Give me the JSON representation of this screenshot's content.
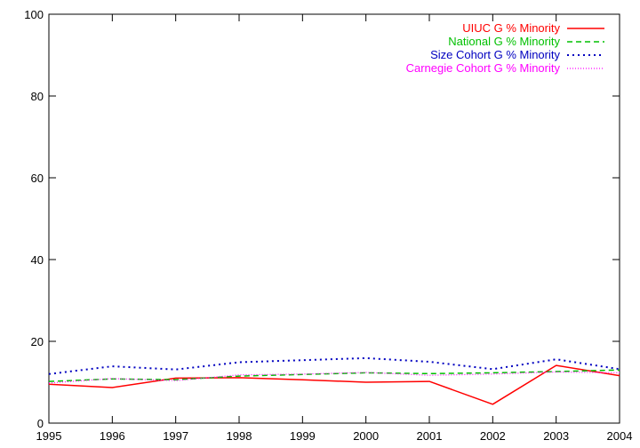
{
  "chart_data": {
    "type": "line",
    "title": "",
    "xlabel": "",
    "ylabel": "",
    "x": [
      1995,
      1996,
      1997,
      1998,
      1999,
      2000,
      2001,
      2002,
      2003,
      2004
    ],
    "xlim": [
      1995,
      2004
    ],
    "ylim": [
      0,
      100
    ],
    "xticks": [
      "1995",
      "1996",
      "1997",
      "1998",
      "1999",
      "2000",
      "2001",
      "2002",
      "2003",
      "2004"
    ],
    "yticks": [
      "0",
      "20",
      "40",
      "60",
      "80",
      "100"
    ],
    "grid": false,
    "legend_position": "top-right",
    "series": [
      {
        "name": "UIUC G % Minority",
        "color": "#ff0000",
        "dash": "solid",
        "values": [
          9.5,
          8.7,
          11.0,
          11.1,
          10.6,
          10.0,
          10.2,
          4.6,
          14.1,
          11.6
        ]
      },
      {
        "name": "National G % Minority",
        "color": "#00c000",
        "dash": "dashed",
        "values": [
          10.2,
          10.8,
          10.6,
          11.5,
          11.9,
          12.3,
          12.1,
          12.3,
          12.6,
          13.0
        ]
      },
      {
        "name": "Size Cohort G % Minority",
        "color": "#0000c0",
        "dash": "dotted",
        "values": [
          12.0,
          13.9,
          13.1,
          14.9,
          15.4,
          15.9,
          15.0,
          13.2,
          15.6,
          13.2
        ]
      },
      {
        "name": "Carnegie Cohort G % Minority",
        "color": "#ff00ff",
        "dash": "fine",
        "values": [
          9.8,
          10.9,
          10.4,
          11.8,
          12.0,
          12.4,
          11.7,
          12.0,
          12.5,
          12.3
        ]
      }
    ]
  }
}
